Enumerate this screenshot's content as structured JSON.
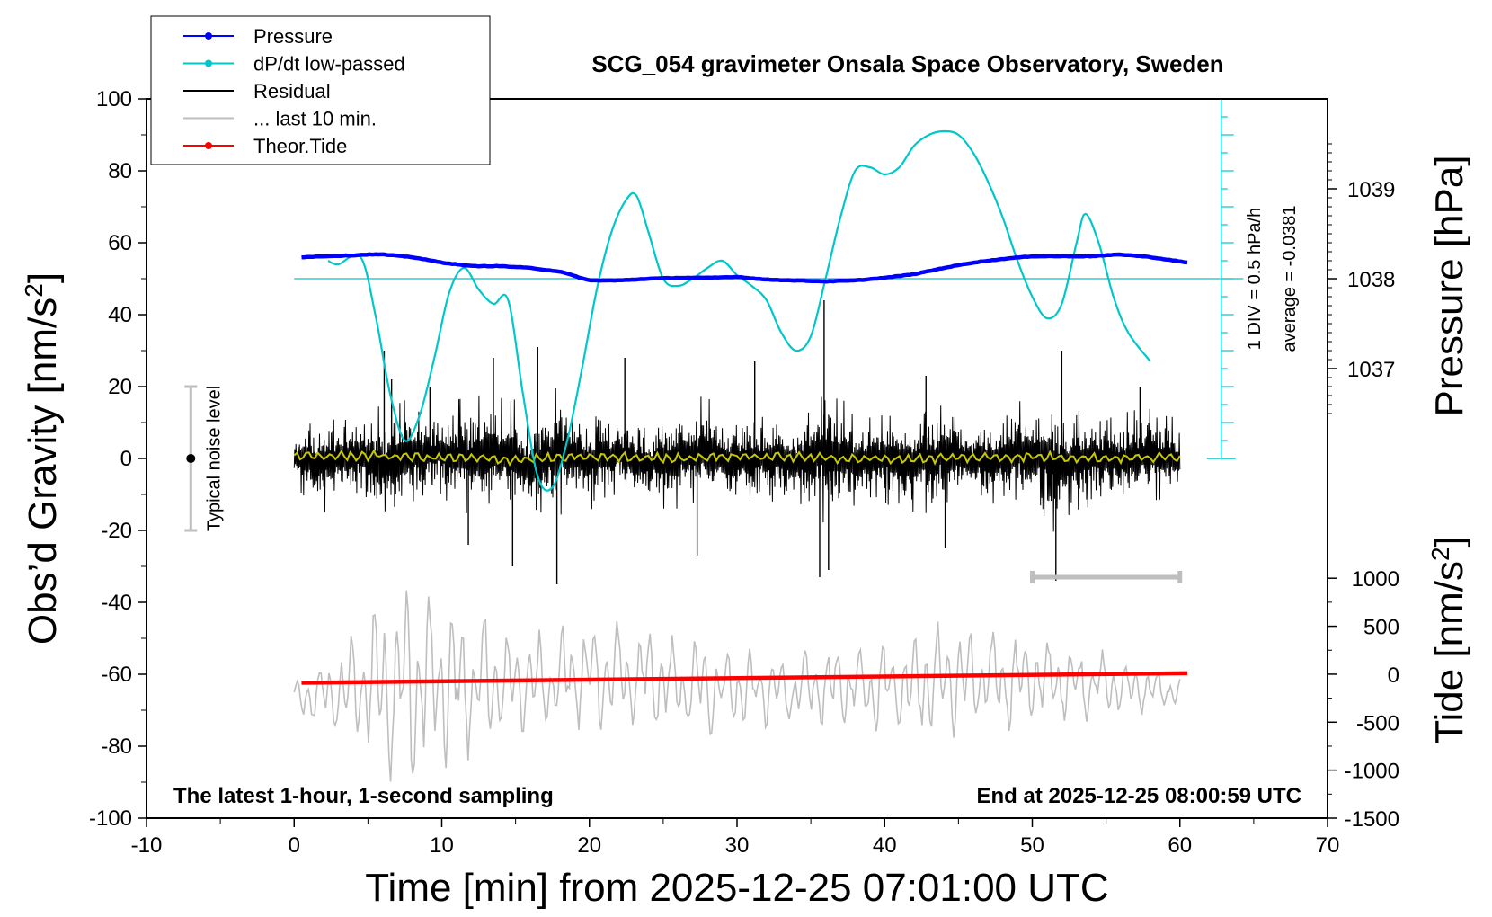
{
  "chart_data": {
    "type": "line",
    "title": "SCG_054 gravimeter Onsala Space Observatory, Sweden",
    "xlabel": "Time [min] from 2025-12-25 07:01:00 UTC",
    "ylabel": "Obs’d Gravity [nm/s²]",
    "ylabel_parts": {
      "base": "Obs’d Gravity [nm/s",
      "sup": "2",
      "end": "]"
    },
    "xlim": [
      -10,
      70
    ],
    "ylim": [
      -100,
      100
    ],
    "x_ticks": [
      -10,
      0,
      10,
      20,
      30,
      40,
      50,
      60,
      70
    ],
    "y_ticks": [
      -100,
      -80,
      -60,
      -40,
      -20,
      0,
      20,
      40,
      60,
      80,
      100
    ],
    "right_axis_pressure": {
      "label": "Pressure [hPa]",
      "ticks": [
        1037,
        1038,
        1039
      ],
      "unit_hpa_per_gravity_unit": 0.04
    },
    "right_axis_tide": {
      "label_parts": {
        "base": "Tide [nm/s",
        "sup": "2",
        "end": "]"
      },
      "ticks": [
        -1500,
        -1000,
        -500,
        0,
        500,
        1000
      ],
      "range": [
        -1500,
        1000
      ],
      "gravity_span": [
        -100,
        -33.3
      ]
    },
    "dpdt_axis": {
      "label_line1": "1 DIV = 0.5 hPa/h",
      "label_line2": "average = -0.0381",
      "x": 62.8,
      "y_range": [
        0,
        100
      ],
      "baseline_gravity": 50
    },
    "legend": {
      "placement": "top-left",
      "entries": [
        {
          "label": "Pressure",
          "color": "#0000ff",
          "marker": true
        },
        {
          "label": "dP/dt low-passed",
          "color": "#00c8c8",
          "marker": true
        },
        {
          "label": "Residual",
          "color": "#000000",
          "marker": false
        },
        {
          "label": "... last 10 min.",
          "color": "#bebebe",
          "marker": false
        },
        {
          "label": "Theor.Tide",
          "color": "#ff0000",
          "marker": true
        }
      ]
    },
    "noise_indicator": {
      "label": "Typical noise level",
      "x": -7,
      "center": 0,
      "range": [
        -20,
        20
      ]
    },
    "last10_bar": {
      "x_range": [
        50,
        60
      ],
      "y": -33
    },
    "footer_left": "The latest 1-hour, 1-second sampling",
    "footer_right": "End at 2025-12-25 08:00:59 UTC",
    "series": [
      {
        "name": "Pressure",
        "color": "#0000ff",
        "unit": "hPa",
        "x": [
          0.5,
          2,
          4,
          5,
          6,
          8,
          10,
          12,
          14,
          16,
          18,
          20,
          22,
          24,
          26,
          28,
          30,
          32,
          34,
          36,
          38,
          40,
          42,
          44,
          46,
          48,
          50,
          52,
          54,
          56,
          58,
          60.5
        ],
        "values": [
          1038.24,
          1038.25,
          1038.26,
          1038.27,
          1038.27,
          1038.24,
          1038.18,
          1038.14,
          1038.14,
          1038.12,
          1038.08,
          1037.98,
          1037.98,
          1038.0,
          1038.01,
          1038.01,
          1038.02,
          1037.99,
          1037.98,
          1037.97,
          1037.98,
          1038.01,
          1038.05,
          1038.12,
          1038.18,
          1038.22,
          1038.25,
          1038.25,
          1038.25,
          1038.27,
          1038.24,
          1038.18
        ]
      },
      {
        "name": "dP/dt low-passed",
        "color": "#00c8c8",
        "unit": "nm/s2 plot scale",
        "x": [
          2.3,
          3,
          4.5,
          5.5,
          6.5,
          7.5,
          8.5,
          9.5,
          10.5,
          11.5,
          12.5,
          13.5,
          14.5,
          15.5,
          16.5,
          17.5,
          18.5,
          19.5,
          20.5,
          21.5,
          22.5,
          23.2,
          24,
          25,
          26,
          27,
          28,
          29,
          30,
          31,
          32,
          33,
          34,
          35,
          36,
          37,
          38,
          39,
          40,
          41,
          42,
          43,
          44,
          45,
          46,
          47,
          48,
          49,
          50,
          51,
          52,
          53,
          53.6,
          54.5,
          55.5,
          56.5,
          58
        ],
        "values": [
          55,
          54,
          56,
          40,
          18,
          5,
          12,
          28,
          46,
          53,
          47,
          43,
          44,
          18,
          -5,
          -8,
          5,
          25,
          47,
          63,
          72,
          73,
          63,
          50,
          48,
          50,
          53,
          55,
          51,
          48,
          44,
          35,
          30,
          34,
          50,
          67,
          80,
          81,
          79,
          81,
          87,
          90,
          91,
          90,
          85,
          77,
          67,
          55,
          45,
          39,
          43,
          60,
          68,
          60,
          45,
          35,
          27
        ]
      },
      {
        "name": "Residual",
        "color": "#000000",
        "unit": "nm/s2",
        "x": [
          0,
          2,
          4,
          6,
          8,
          10,
          12,
          14,
          16,
          18,
          20,
          22,
          24,
          26,
          28,
          30,
          32,
          34,
          36,
          38,
          40,
          42,
          44,
          46,
          48,
          50,
          52,
          54,
          56,
          58,
          60
        ],
        "values": [
          1,
          -3,
          4,
          -6,
          2,
          5,
          -4,
          3,
          -8,
          6,
          -2,
          4,
          -5,
          2,
          3,
          -4,
          1,
          -3,
          7,
          -2,
          2,
          -5,
          4,
          -3,
          2,
          5,
          -6,
          3,
          -2,
          4,
          -1
        ],
        "envelope_pos": [
          8,
          14,
          15,
          19,
          17,
          13,
          22,
          21,
          15,
          20,
          15,
          13,
          12,
          15,
          18,
          14,
          13,
          12,
          21,
          14,
          13,
          15,
          16,
          15,
          13,
          20,
          18,
          15,
          14,
          15,
          12
        ],
        "envelope_neg": [
          -9,
          -16,
          -15,
          -18,
          -17,
          -14,
          -16,
          -17,
          -15,
          -21,
          -15,
          -13,
          -14,
          -16,
          -14,
          -13,
          -13,
          -15,
          -22,
          -14,
          -15,
          -17,
          -14,
          -12,
          -16,
          -18,
          -22,
          -14,
          -15,
          -15,
          -11
        ],
        "spikes": [
          [
            6.1,
            30
          ],
          [
            6.6,
            22
          ],
          [
            9.2,
            20
          ],
          [
            11.8,
            -24
          ],
          [
            13.5,
            28
          ],
          [
            14.8,
            -30
          ],
          [
            16.5,
            31
          ],
          [
            17.8,
            -35
          ],
          [
            22.4,
            28
          ],
          [
            27.3,
            -27
          ],
          [
            31.2,
            27
          ],
          [
            35.6,
            -33
          ],
          [
            35.9,
            44
          ],
          [
            36.2,
            -31
          ],
          [
            42.8,
            23
          ],
          [
            44.1,
            -25
          ],
          [
            52.0,
            30
          ],
          [
            51.6,
            -34
          ],
          [
            57.3,
            20
          ]
        ]
      },
      {
        "name": "... last 10 min.",
        "color": "#bebebe",
        "unit": "nm/s2 plot scale (50x expansion of last 10 minutes)",
        "x_range": [
          0,
          60
        ],
        "center": -62,
        "envelope_pos": [
          -62,
          -56,
          -48,
          -36,
          -31,
          -38,
          -42,
          -45,
          -48,
          -46,
          -44,
          -44,
          -46,
          -49,
          -50,
          -52,
          -53,
          -54,
          -52,
          -50,
          -49,
          -47,
          -45,
          -46,
          -47,
          -48,
          -50,
          -52,
          -55,
          -58,
          -60
        ],
        "envelope_neg": [
          -72,
          -76,
          -80,
          -88,
          -95,
          -88,
          -84,
          -80,
          -77,
          -76,
          -76,
          -77,
          -77,
          -78,
          -77,
          -76,
          -76,
          -75,
          -75,
          -76,
          -77,
          -78,
          -78,
          -77,
          -76,
          -75,
          -74,
          -73,
          -72,
          -71,
          -70
        ]
      },
      {
        "name": "Theor.Tide",
        "color": "#ff0000",
        "unit": "nm/s2",
        "x": [
          0.5,
          60.5
        ],
        "values": [
          -90,
          10
        ]
      },
      {
        "name": "Smoothed residual",
        "color": "#c8c800",
        "unit": "nm/s2",
        "x": [
          0,
          5,
          10,
          15,
          20,
          25,
          30,
          35,
          40,
          45,
          50,
          55,
          60
        ],
        "values": [
          0.5,
          0.8,
          0.2,
          -0.3,
          0.4,
          0.1,
          0.6,
          0.3,
          -0.2,
          0.2,
          0.5,
          0.1,
          0.3
        ]
      }
    ]
  }
}
